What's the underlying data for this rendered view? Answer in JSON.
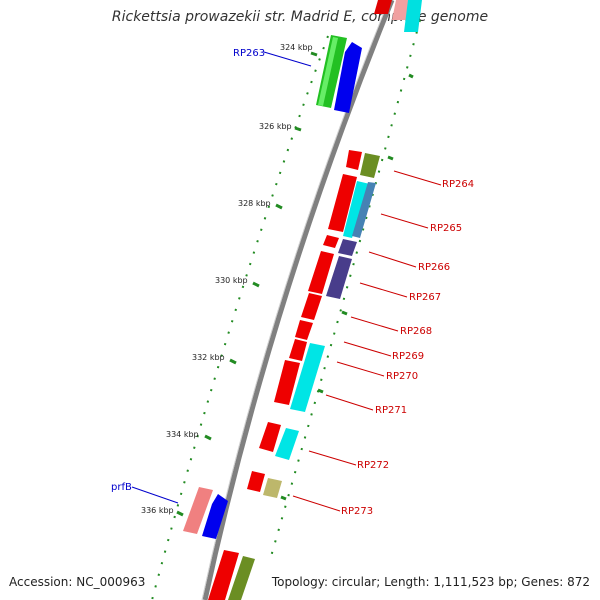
{
  "title": "Rickettsia prowazekii str. Madrid E, complete genome",
  "footer": {
    "accession": "Accession: NC_000963",
    "summary": "Topology: circular; Length: 1,111,523 bp; Genes: 872"
  },
  "colors": {
    "forward_label": "#0000cc",
    "reverse_label": "#cc0000",
    "ticks": "#228b22",
    "backbone": "#808080"
  },
  "ticks": [
    "324 kbp",
    "326 kbp",
    "328 kbp",
    "330 kbp",
    "332 kbp",
    "334 kbp",
    "336 kbp"
  ],
  "gene_labels": {
    "forward": [
      "RP263",
      "prfB"
    ],
    "reverse": [
      "RP264",
      "RP265",
      "RP266",
      "RP267",
      "RP268",
      "RP269",
      "RP270",
      "RP271",
      "RP272",
      "RP273"
    ]
  }
}
